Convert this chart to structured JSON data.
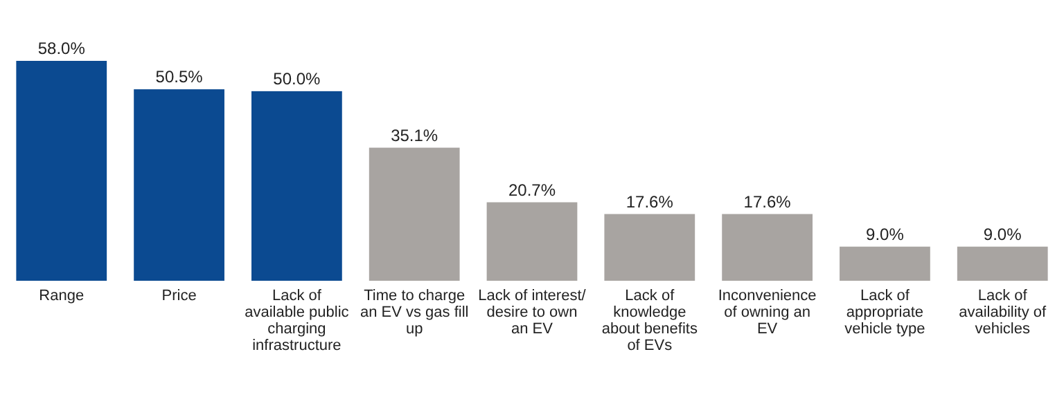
{
  "chart_data": {
    "type": "bar",
    "categories": [
      "Range",
      "Price",
      "Lack of available public charging infrastructure",
      "Time to charge an EV vs gas fill up",
      "Lack of interest/ desire to own an EV",
      "Lack of knowledge about benefits of EVs",
      "Inconvenience of owning an EV",
      "Lack of appropriate vehicle type",
      "Lack of availability of vehicles"
    ],
    "values": [
      58.0,
      50.5,
      50.0,
      35.1,
      20.7,
      17.6,
      17.6,
      9.0,
      9.0
    ],
    "colors": [
      "#0b4a91",
      "#0b4a91",
      "#0b4a91",
      "#a8a4a1",
      "#a8a4a1",
      "#a8a4a1",
      "#a8a4a1",
      "#a8a4a1",
      "#a8a4a1"
    ],
    "value_labels": [
      "58.0%",
      "50.5%",
      "50.0%",
      "35.1%",
      "20.7%",
      "17.6%",
      "17.6%",
      "9.0%",
      "9.0%"
    ]
  }
}
